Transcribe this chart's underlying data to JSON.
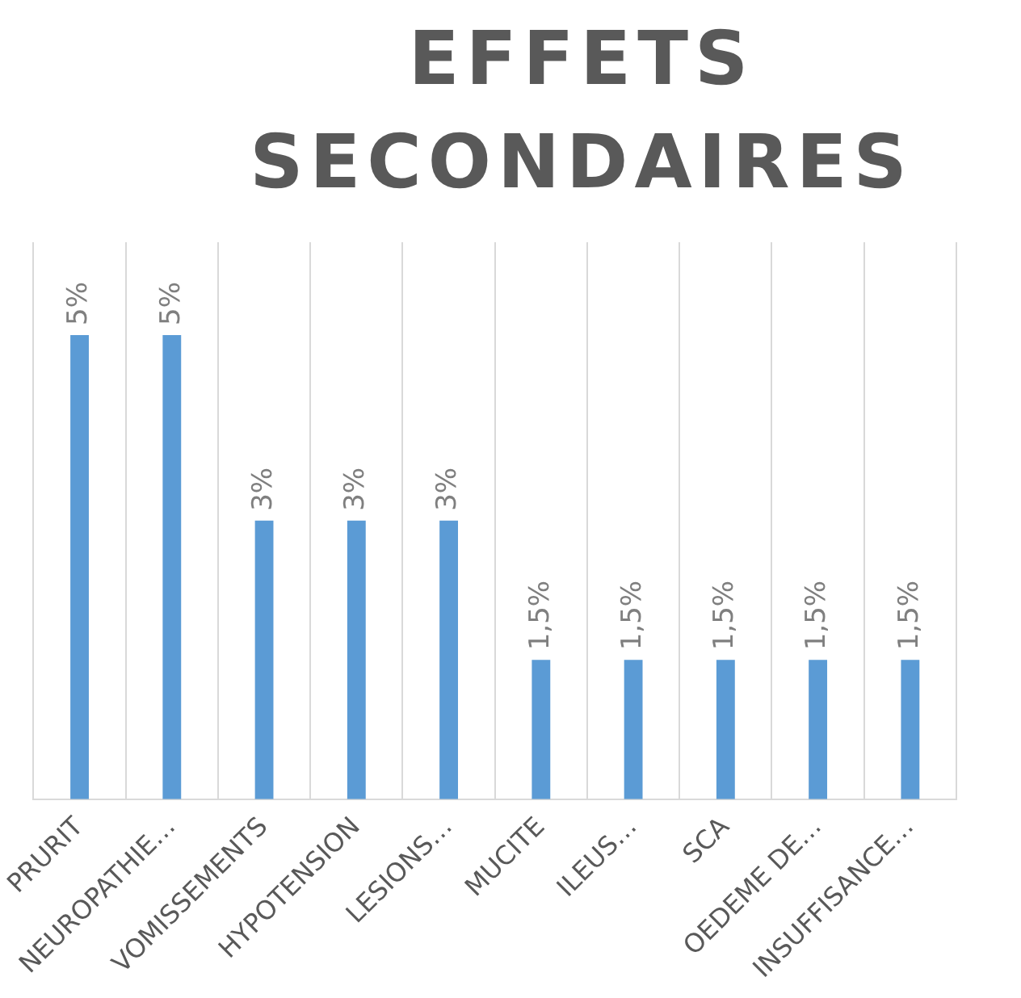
{
  "chart_data": {
    "type": "bar",
    "title": "EFFETS SECONDAIRES",
    "categories": [
      "PRURIT",
      "NEUROPATHIE…",
      "VOMISSEMENTS",
      "HYPOTENSION",
      "LESIONS…",
      "MUCITE",
      "ILEUS…",
      "SCA",
      "OEDEME DE…",
      "INSUFFISANCE…"
    ],
    "values": [
      5,
      5,
      3,
      3,
      3,
      1.5,
      1.5,
      1.5,
      1.5,
      1.5
    ],
    "value_labels": [
      "5%",
      "5%",
      "3%",
      "3%",
      "3%",
      "1,5%",
      "1,5%",
      "1,5%",
      "1,5%",
      "1,5%"
    ],
    "color": "#5b9bd5",
    "ylim": [
      0,
      6
    ],
    "grid": "x",
    "legend": false,
    "tick_labels": "x"
  }
}
